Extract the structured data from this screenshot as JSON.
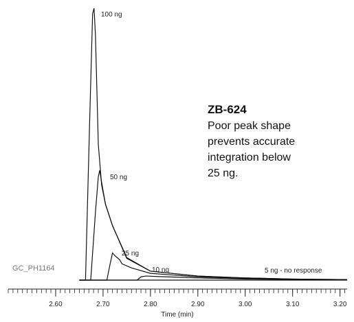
{
  "chart_data": {
    "type": "line",
    "xlabel": "Time (min)",
    "xlim": [
      2.5,
      3.215
    ],
    "ylim": [
      0,
      100
    ],
    "xticks": [
      {
        "value": 2.6,
        "label": "2.60"
      },
      {
        "value": 2.7,
        "label": "2.70"
      },
      {
        "value": 2.8,
        "label": "2.80"
      },
      {
        "value": 2.9,
        "label": "2.90"
      },
      {
        "value": 3.0,
        "label": "3.00"
      },
      {
        "value": 3.1,
        "label": "3.10"
      },
      {
        "value": 3.2,
        "label": "3.20"
      }
    ],
    "xticks_minor": [
      2.5,
      2.51,
      2.52,
      2.53,
      2.54,
      2.55,
      2.56,
      2.57,
      2.58,
      2.59,
      2.6,
      2.61,
      2.62,
      2.63,
      2.64,
      2.65,
      2.66,
      2.67,
      2.68,
      2.69,
      2.7,
      2.71,
      2.72,
      2.73,
      2.74,
      2.75,
      2.76,
      2.77,
      2.78,
      2.79,
      2.8,
      2.81,
      2.82,
      2.83,
      2.84,
      2.85,
      2.86,
      2.87,
      2.88,
      2.89,
      2.9,
      2.91,
      2.92,
      2.93,
      2.94,
      2.95,
      2.96,
      2.97,
      2.98,
      2.99,
      3.0,
      3.01,
      3.02,
      3.03,
      3.04,
      3.05,
      3.06,
      3.07,
      3.08,
      3.09,
      3.1,
      3.11,
      3.12,
      3.13,
      3.14,
      3.15,
      3.16,
      3.17,
      3.18,
      3.19,
      3.2,
      3.21
    ],
    "series": [
      {
        "name": "100 ng",
        "color": "#111111",
        "x": [
          2.65,
          2.663,
          2.672,
          2.678,
          2.681,
          2.684,
          2.69,
          2.697,
          2.705,
          2.72,
          2.75,
          2.8,
          2.9,
          3.0,
          3.1,
          3.215
        ],
        "values": [
          0,
          0,
          60,
          98,
          100,
          90,
          50,
          35,
          28,
          20,
          8,
          3.3,
          1.5,
          0.8,
          0.4,
          0.2
        ]
      },
      {
        "name": "50 ng",
        "color": "#111111",
        "x": [
          2.65,
          2.674,
          2.684,
          2.69,
          2.693,
          2.697,
          2.705,
          2.72,
          2.75,
          2.8,
          2.9,
          3.0,
          3.1,
          3.215
        ],
        "values": [
          0,
          0,
          25,
          38,
          40.4,
          36,
          28,
          20,
          8.3,
          3.3,
          1.5,
          0.8,
          0.4,
          0.2
        ]
      },
      {
        "name": "25 ng",
        "color": "#111111",
        "x": [
          2.65,
          2.708,
          2.715,
          2.72,
          2.725,
          2.735,
          2.74,
          2.76,
          2.8,
          2.9,
          3.0,
          3.1,
          3.215
        ],
        "values": [
          0,
          0,
          6,
          10,
          9,
          7.5,
          6,
          4.5,
          2.5,
          1.2,
          0.6,
          0.3,
          0.1
        ]
      },
      {
        "name": "10 ng",
        "color": "#111111",
        "x": [
          2.65,
          2.772,
          2.78,
          2.79,
          2.82,
          2.9,
          3.0,
          3.1,
          3.215
        ],
        "values": [
          0,
          0,
          1.2,
          1.5,
          1.3,
          0.8,
          0.4,
          0.2,
          0.1
        ]
      },
      {
        "name": "5 ng - no response",
        "color": "#111111",
        "x": [
          2.65,
          3.215
        ],
        "values": [
          0,
          0
        ]
      }
    ],
    "method_id": "GC_PH1164",
    "annotation": {
      "title": "ZB-624",
      "lines": [
        "Poor peak shape",
        "prevents accurate",
        "integration below",
        "25 ng."
      ]
    }
  }
}
